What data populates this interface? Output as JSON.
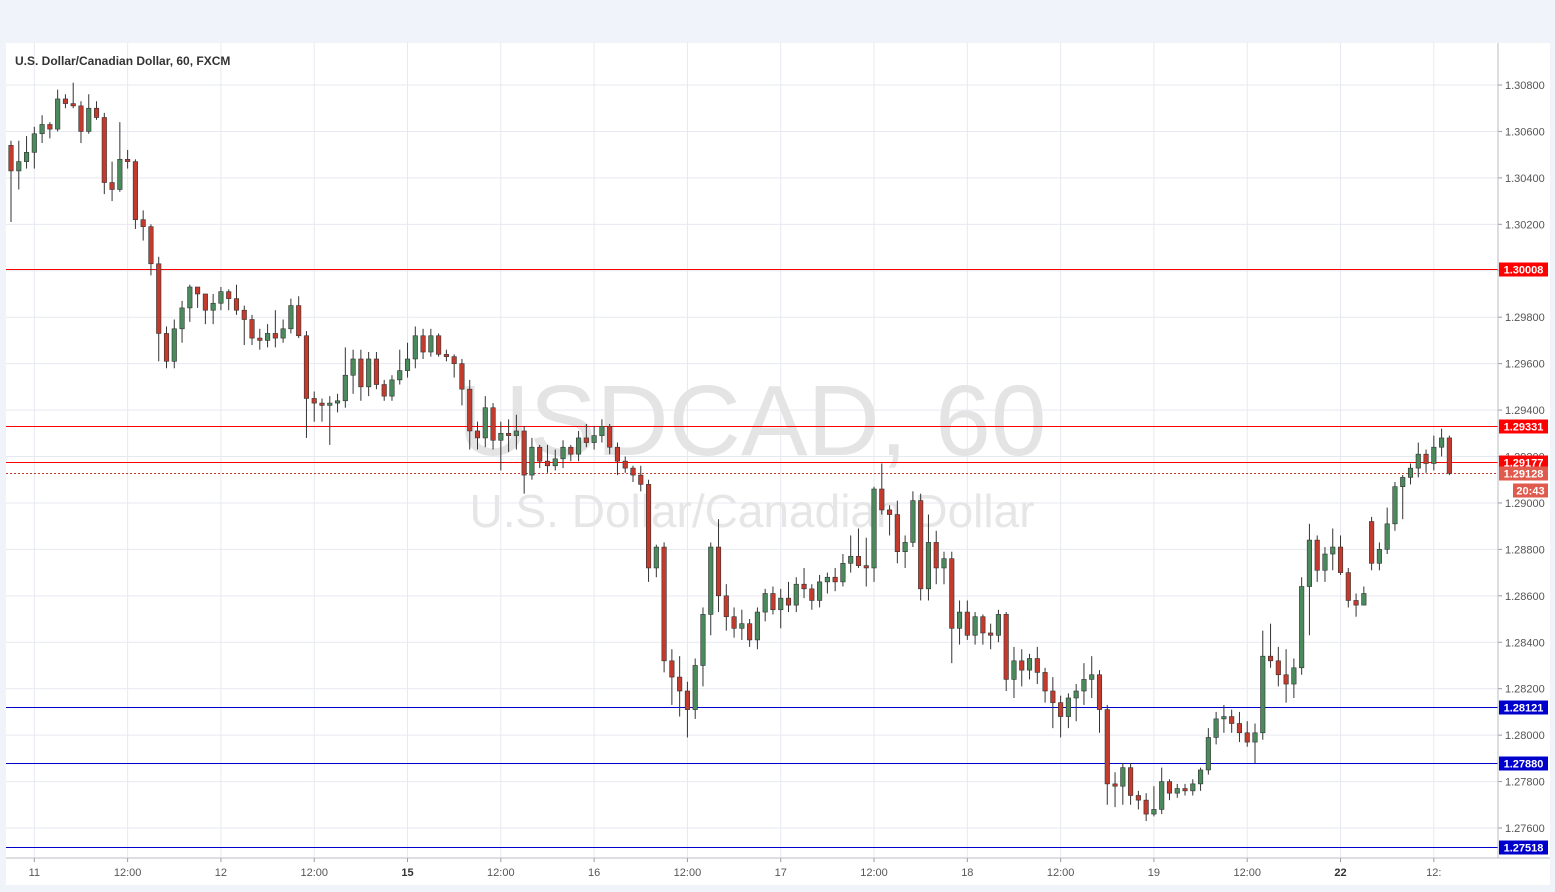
{
  "header": {
    "symbol_title": "U.S. Dollar/Canadian Dollar, 60, FXCM"
  },
  "watermark": {
    "symbol": "USDCAD, 60",
    "description": "U.S. Dollar/Canadian Dollar"
  },
  "countdown": "20:43",
  "colors": {
    "bull": "#4a8a5c",
    "bear": "#c43b2e",
    "resistance": "#ff0000",
    "support": "#0000cc",
    "grid": "#e6e9f0",
    "background": "#ffffff"
  },
  "chart_data": {
    "type": "candlestick",
    "title": "U.S. Dollar/Canadian Dollar, 60, FXCM",
    "ylim": [
      1.2748,
      1.3098
    ],
    "y_ticks": [
      1.308,
      1.306,
      1.304,
      1.302,
      1.3,
      1.298,
      1.296,
      1.294,
      1.292,
      1.29,
      1.288,
      1.286,
      1.284,
      1.282,
      1.28,
      1.278,
      1.276
    ],
    "y_tick_labels": [
      "1.30800",
      "1.30600",
      "1.30400",
      "1.30200",
      "1.30000",
      "1.29800",
      "1.29600",
      "1.29400",
      "1.29200",
      "1.29000",
      "1.28800",
      "1.28600",
      "1.28400",
      "1.28200",
      "1.28000",
      "1.27800",
      "1.27600"
    ],
    "x_ticks": [
      {
        "label": "11",
        "index": 3,
        "bold": false
      },
      {
        "label": "12:00",
        "index": 15,
        "bold": false
      },
      {
        "label": "12",
        "index": 27,
        "bold": false
      },
      {
        "label": "12:00",
        "index": 39,
        "bold": false
      },
      {
        "label": "15",
        "index": 51,
        "bold": true
      },
      {
        "label": "12:00",
        "index": 63,
        "bold": false
      },
      {
        "label": "16",
        "index": 75,
        "bold": false
      },
      {
        "label": "12:00",
        "index": 87,
        "bold": false
      },
      {
        "label": "17",
        "index": 99,
        "bold": false
      },
      {
        "label": "12:00",
        "index": 111,
        "bold": false
      },
      {
        "label": "18",
        "index": 123,
        "bold": false
      },
      {
        "label": "12:00",
        "index": 135,
        "bold": false
      },
      {
        "label": "19",
        "index": 147,
        "bold": false
      },
      {
        "label": "12:00",
        "index": 159,
        "bold": false
      },
      {
        "label": "22",
        "index": 171,
        "bold": true
      },
      {
        "label": "12:",
        "index": 183,
        "bold": false
      }
    ],
    "horizontal_lines": [
      {
        "value": 1.30008,
        "label": "1.30008",
        "color": "#ff0000",
        "style": "solid"
      },
      {
        "value": 1.29331,
        "label": "1.29331",
        "color": "#ff0000",
        "style": "solid"
      },
      {
        "value": 1.29177,
        "label": "1.29177",
        "color": "#ff0000",
        "style": "solid"
      },
      {
        "value": 1.28121,
        "label": "1.28121",
        "color": "#0000cc",
        "style": "solid"
      },
      {
        "value": 1.2788,
        "label": "1.27880",
        "color": "#0000cc",
        "style": "solid"
      },
      {
        "value": 1.27518,
        "label": "1.27518",
        "color": "#0000cc",
        "style": "solid"
      }
    ],
    "last_price": {
      "value": 1.29128,
      "label": "1.29128"
    },
    "candles": [
      [
        1.3054,
        1.3056,
        1.3021,
        1.3043
      ],
      [
        1.3043,
        1.3056,
        1.3035,
        1.3047
      ],
      [
        1.3047,
        1.3058,
        1.3044,
        1.3051
      ],
      [
        1.3051,
        1.3062,
        1.3044,
        1.3059
      ],
      [
        1.3059,
        1.3067,
        1.3055,
        1.3063
      ],
      [
        1.3063,
        1.3064,
        1.3057,
        1.3061
      ],
      [
        1.3061,
        1.3078,
        1.306,
        1.3074
      ],
      [
        1.3074,
        1.3076,
        1.307,
        1.3072
      ],
      [
        1.3072,
        1.3081,
        1.307,
        1.3071
      ],
      [
        1.3071,
        1.3073,
        1.3055,
        1.306
      ],
      [
        1.306,
        1.3076,
        1.3059,
        1.307
      ],
      [
        1.307,
        1.3073,
        1.3065,
        1.3066
      ],
      [
        1.3066,
        1.3068,
        1.3033,
        1.3038
      ],
      [
        1.3038,
        1.3047,
        1.303,
        1.3035
      ],
      [
        1.3035,
        1.3064,
        1.3034,
        1.3048
      ],
      [
        1.3048,
        1.3052,
        1.3044,
        1.3047
      ],
      [
        1.3047,
        1.3048,
        1.3018,
        1.3022
      ],
      [
        1.3022,
        1.3026,
        1.3013,
        1.3019
      ],
      [
        1.3019,
        1.302,
        1.2998,
        1.3003
      ],
      [
        1.3003,
        1.3006,
        1.2961,
        1.2973
      ],
      [
        1.2973,
        1.2976,
        1.2958,
        1.2961
      ],
      [
        1.2961,
        1.2979,
        1.2958,
        1.2975
      ],
      [
        1.2975,
        1.2987,
        1.2969,
        1.2984
      ],
      [
        1.2984,
        1.2994,
        1.2978,
        1.2993
      ],
      [
        1.2993,
        1.2993,
        1.2984,
        1.299
      ],
      [
        1.299,
        1.299,
        1.2977,
        1.2983
      ],
      [
        1.2983,
        1.299,
        1.2977,
        1.2986
      ],
      [
        1.2986,
        1.2993,
        1.2983,
        1.2991
      ],
      [
        1.2991,
        1.2992,
        1.2983,
        1.2988
      ],
      [
        1.2988,
        1.2994,
        1.2981,
        1.2983
      ],
      [
        1.2983,
        1.2985,
        1.2968,
        1.2979
      ],
      [
        1.2979,
        1.2981,
        1.2968,
        1.2971
      ],
      [
        1.2971,
        1.2975,
        1.2966,
        1.297
      ],
      [
        1.297,
        1.2977,
        1.2967,
        1.2973
      ],
      [
        1.2973,
        1.2983,
        1.2967,
        1.2971
      ],
      [
        1.2971,
        1.2979,
        1.2969,
        1.2975
      ],
      [
        1.2975,
        1.2988,
        1.2973,
        1.2985
      ],
      [
        1.2985,
        1.2989,
        1.2971,
        1.2972
      ],
      [
        1.2972,
        1.2974,
        1.2928,
        1.2945
      ],
      [
        1.2945,
        1.2948,
        1.2935,
        1.2943
      ],
      [
        1.2943,
        1.2945,
        1.2935,
        1.2942
      ],
      [
        1.2942,
        1.2946,
        1.2925,
        1.2943
      ],
      [
        1.2943,
        1.2947,
        1.2939,
        1.2944
      ],
      [
        1.2944,
        1.2967,
        1.2941,
        1.2955
      ],
      [
        1.2955,
        1.2966,
        1.2947,
        1.2962
      ],
      [
        1.2962,
        1.2966,
        1.2944,
        1.295
      ],
      [
        1.295,
        1.2965,
        1.2946,
        1.2962
      ],
      [
        1.2962,
        1.2965,
        1.2949,
        1.2951
      ],
      [
        1.2951,
        1.2953,
        1.2944,
        1.2946
      ],
      [
        1.2946,
        1.2955,
        1.2944,
        1.2953
      ],
      [
        1.2953,
        1.2966,
        1.2951,
        1.2957
      ],
      [
        1.2957,
        1.2969,
        1.2954,
        1.2962
      ],
      [
        1.2962,
        1.2976,
        1.2958,
        1.2972
      ],
      [
        1.2972,
        1.2975,
        1.2962,
        1.2965
      ],
      [
        1.2965,
        1.2975,
        1.2963,
        1.2972
      ],
      [
        1.2972,
        1.2973,
        1.2963,
        1.2964
      ],
      [
        1.2964,
        1.2966,
        1.2961,
        1.2963
      ],
      [
        1.2963,
        1.2964,
        1.2954,
        1.296
      ],
      [
        1.296,
        1.2962,
        1.2942,
        1.2949
      ],
      [
        1.2949,
        1.2953,
        1.2923,
        1.2931
      ],
      [
        1.2931,
        1.2935,
        1.2923,
        1.2928
      ],
      [
        1.2928,
        1.2946,
        1.2924,
        1.2941
      ],
      [
        1.2941,
        1.2943,
        1.2923,
        1.2927
      ],
      [
        1.2927,
        1.2935,
        1.2914,
        1.293
      ],
      [
        1.293,
        1.2936,
        1.2922,
        1.2929
      ],
      [
        1.2929,
        1.2938,
        1.2923,
        1.2931
      ],
      [
        1.2931,
        1.2933,
        1.2904,
        1.2912
      ],
      [
        1.2912,
        1.2928,
        1.291,
        1.2924
      ],
      [
        1.2924,
        1.2925,
        1.2915,
        1.2918
      ],
      [
        1.2918,
        1.2925,
        1.2913,
        1.2916
      ],
      [
        1.2916,
        1.2923,
        1.2914,
        1.2919
      ],
      [
        1.2919,
        1.2927,
        1.2915,
        1.2924
      ],
      [
        1.2924,
        1.2925,
        1.2918,
        1.2921
      ],
      [
        1.2921,
        1.2931,
        1.2918,
        1.2928
      ],
      [
        1.2928,
        1.2934,
        1.2924,
        1.2926
      ],
      [
        1.2926,
        1.2933,
        1.2923,
        1.2929
      ],
      [
        1.2929,
        1.2936,
        1.2926,
        1.2933
      ],
      [
        1.2933,
        1.2934,
        1.2921,
        1.2924
      ],
      [
        1.2924,
        1.2926,
        1.2912,
        1.2918
      ],
      [
        1.2918,
        1.292,
        1.2913,
        1.2915
      ],
      [
        1.2915,
        1.2916,
        1.2909,
        1.2912
      ],
      [
        1.2912,
        1.2916,
        1.2905,
        1.2908
      ],
      [
        1.2908,
        1.291,
        1.2866,
        1.2872
      ],
      [
        1.2872,
        1.2882,
        1.2868,
        1.2881
      ],
      [
        1.2881,
        1.2883,
        1.2827,
        1.2832
      ],
      [
        1.2832,
        1.2837,
        1.2813,
        1.2825
      ],
      [
        1.2825,
        1.2834,
        1.2808,
        1.2819
      ],
      [
        1.2819,
        1.2823,
        1.2799,
        1.2811
      ],
      [
        1.2811,
        1.2833,
        1.2807,
        1.283
      ],
      [
        1.283,
        1.2855,
        1.2821,
        1.2852
      ],
      [
        1.2852,
        1.2883,
        1.2843,
        1.2881
      ],
      [
        1.2881,
        1.2893,
        1.2853,
        1.286
      ],
      [
        1.286,
        1.2865,
        1.2845,
        1.2851
      ],
      [
        1.2851,
        1.2855,
        1.2842,
        1.2846
      ],
      [
        1.2846,
        1.2854,
        1.2841,
        1.2848
      ],
      [
        1.2848,
        1.285,
        1.2838,
        1.2841
      ],
      [
        1.2841,
        1.2855,
        1.2837,
        1.2853
      ],
      [
        1.2853,
        1.2863,
        1.2849,
        1.2861
      ],
      [
        1.2861,
        1.2864,
        1.2852,
        1.2854
      ],
      [
        1.2854,
        1.2863,
        1.2846,
        1.2859
      ],
      [
        1.2859,
        1.2866,
        1.2853,
        1.2856
      ],
      [
        1.2856,
        1.2868,
        1.2853,
        1.2865
      ],
      [
        1.2865,
        1.2872,
        1.2859,
        1.2863
      ],
      [
        1.2863,
        1.2865,
        1.2854,
        1.2858
      ],
      [
        1.2858,
        1.2869,
        1.2855,
        1.2866
      ],
      [
        1.2866,
        1.287,
        1.2861,
        1.2868
      ],
      [
        1.2868,
        1.2872,
        1.2862,
        1.2866
      ],
      [
        1.2866,
        1.2878,
        1.2864,
        1.2874
      ],
      [
        1.2874,
        1.2886,
        1.287,
        1.2877
      ],
      [
        1.2877,
        1.2889,
        1.2872,
        1.2873
      ],
      [
        1.2873,
        1.2885,
        1.2864,
        1.2872
      ],
      [
        1.2872,
        1.2907,
        1.2866,
        1.2906
      ],
      [
        1.2906,
        1.2917,
        1.2895,
        1.2897
      ],
      [
        1.2897,
        1.2899,
        1.2886,
        1.2895
      ],
      [
        1.2895,
        1.2901,
        1.2874,
        1.2879
      ],
      [
        1.2879,
        1.2886,
        1.2872,
        1.2883
      ],
      [
        1.2883,
        1.2905,
        1.2881,
        1.2901
      ],
      [
        1.2901,
        1.2904,
        1.2858,
        1.2863
      ],
      [
        1.2863,
        1.2895,
        1.2858,
        1.2883
      ],
      [
        1.2883,
        1.2888,
        1.2865,
        1.2872
      ],
      [
        1.2872,
        1.2879,
        1.2865,
        1.2876
      ],
      [
        1.2876,
        1.2879,
        1.2831,
        1.2846
      ],
      [
        1.2846,
        1.2858,
        1.2839,
        1.2853
      ],
      [
        1.2853,
        1.2858,
        1.2841,
        1.2843
      ],
      [
        1.2843,
        1.2853,
        1.2839,
        1.2851
      ],
      [
        1.2851,
        1.2852,
        1.2839,
        1.2844
      ],
      [
        1.2844,
        1.2848,
        1.2837,
        1.2843
      ],
      [
        1.2843,
        1.2854,
        1.284,
        1.2852
      ],
      [
        1.2852,
        1.2853,
        1.2819,
        1.2824
      ],
      [
        1.2824,
        1.2838,
        1.2816,
        1.2832
      ],
      [
        1.2832,
        1.2837,
        1.2821,
        1.2828
      ],
      [
        1.2828,
        1.2835,
        1.2824,
        1.2833
      ],
      [
        1.2833,
        1.2838,
        1.2822,
        1.2827
      ],
      [
        1.2827,
        1.2829,
        1.2814,
        1.2819
      ],
      [
        1.2819,
        1.2825,
        1.2803,
        1.2814
      ],
      [
        1.2814,
        1.2817,
        1.2799,
        1.2808
      ],
      [
        1.2808,
        1.2818,
        1.2803,
        1.2816
      ],
      [
        1.2816,
        1.2822,
        1.2806,
        1.2819
      ],
      [
        1.2819,
        1.2831,
        1.2813,
        1.2824
      ],
      [
        1.2824,
        1.2834,
        1.2816,
        1.2826
      ],
      [
        1.2826,
        1.2828,
        1.2801,
        1.2811
      ],
      [
        1.2811,
        1.2813,
        1.277,
        1.2779
      ],
      [
        1.2779,
        1.2784,
        1.2769,
        1.2778
      ],
      [
        1.2778,
        1.2788,
        1.277,
        1.2786
      ],
      [
        1.2786,
        1.2788,
        1.277,
        1.2774
      ],
      [
        1.2774,
        1.2776,
        1.2768,
        1.2772
      ],
      [
        1.2772,
        1.2775,
        1.2763,
        1.2766
      ],
      [
        1.2766,
        1.2778,
        1.2765,
        1.2768
      ],
      [
        1.2768,
        1.2786,
        1.2766,
        1.278
      ],
      [
        1.278,
        1.2781,
        1.2772,
        1.2775
      ],
      [
        1.2775,
        1.2779,
        1.2773,
        1.2777
      ],
      [
        1.2777,
        1.2779,
        1.2774,
        1.2776
      ],
      [
        1.2776,
        1.2781,
        1.2774,
        1.2779
      ],
      [
        1.2779,
        1.2786,
        1.2776,
        1.2785
      ],
      [
        1.2785,
        1.2803,
        1.2783,
        1.2799
      ],
      [
        1.2799,
        1.281,
        1.2796,
        1.2807
      ],
      [
        1.2807,
        1.2813,
        1.2801,
        1.2808
      ],
      [
        1.2808,
        1.2811,
        1.2801,
        1.2805
      ],
      [
        1.2805,
        1.281,
        1.2797,
        1.2801
      ],
      [
        1.2801,
        1.2806,
        1.2795,
        1.2797
      ],
      [
        1.2797,
        1.2805,
        1.2788,
        1.2801
      ],
      [
        1.2801,
        1.2845,
        1.2798,
        1.2834
      ],
      [
        1.2834,
        1.2848,
        1.2829,
        1.2832
      ],
      [
        1.2832,
        1.2838,
        1.2821,
        1.2826
      ],
      [
        1.2826,
        1.2837,
        1.2814,
        1.2822
      ],
      [
        1.2822,
        1.2833,
        1.2816,
        1.2829
      ],
      [
        1.2829,
        1.2868,
        1.2826,
        1.2864
      ],
      [
        1.2864,
        1.2891,
        1.2843,
        1.2884
      ],
      [
        1.2884,
        1.2886,
        1.2866,
        1.2871
      ],
      [
        1.2871,
        1.2881,
        1.2866,
        1.2878
      ],
      [
        1.2878,
        1.2889,
        1.2871,
        1.2881
      ],
      [
        1.2881,
        1.2886,
        1.2869,
        1.287
      ],
      [
        1.287,
        1.2872,
        1.2855,
        1.2858
      ],
      [
        1.2858,
        1.2861,
        1.2851,
        1.2856
      ],
      [
        1.2856,
        1.2864,
        1.2856,
        1.2861
      ],
      [
        1.2892,
        1.2894,
        1.2871,
        1.2874
      ],
      [
        1.2874,
        1.2883,
        1.2871,
        1.288
      ],
      [
        1.288,
        1.2898,
        1.2878,
        1.2891
      ],
      [
        1.2891,
        1.2909,
        1.2888,
        1.2907
      ],
      [
        1.2907,
        1.2912,
        1.2893,
        1.2911
      ],
      [
        1.2911,
        1.2917,
        1.2908,
        1.2915
      ],
      [
        1.2915,
        1.2926,
        1.2911,
        1.2921
      ],
      [
        1.2921,
        1.2923,
        1.2913,
        1.2917
      ],
      [
        1.2917,
        1.2929,
        1.2914,
        1.2924
      ],
      [
        1.2924,
        1.2932,
        1.292,
        1.2928
      ],
      [
        1.2928,
        1.2929,
        1.2912,
        1.29128
      ]
    ]
  }
}
